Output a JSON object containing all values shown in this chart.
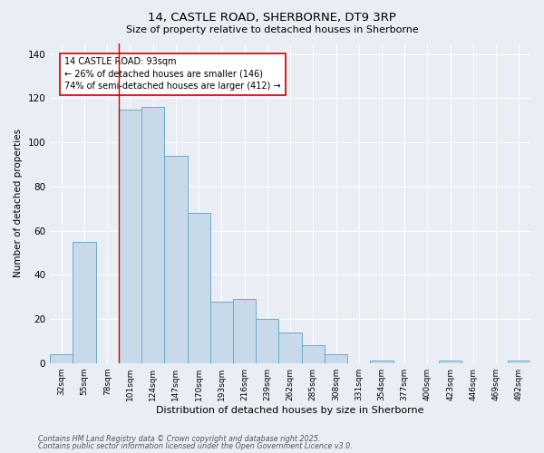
{
  "title_line1": "14, CASTLE ROAD, SHERBORNE, DT9 3RP",
  "title_line2": "Size of property relative to detached houses in Sherborne",
  "xlabel": "Distribution of detached houses by size in Sherborne",
  "ylabel": "Number of detached properties",
  "categories": [
    "32sqm",
    "55sqm",
    "78sqm",
    "101sqm",
    "124sqm",
    "147sqm",
    "170sqm",
    "193sqm",
    "216sqm",
    "239sqm",
    "262sqm",
    "285sqm",
    "308sqm",
    "331sqm",
    "354sqm",
    "377sqm",
    "400sqm",
    "423sqm",
    "446sqm",
    "469sqm",
    "492sqm"
  ],
  "values": [
    4,
    55,
    0,
    115,
    116,
    94,
    68,
    28,
    29,
    20,
    14,
    8,
    4,
    0,
    1,
    0,
    0,
    1,
    0,
    0,
    1
  ],
  "bar_color": "#c8daea",
  "bar_edge_color": "#6aaac8",
  "red_line_x": 2.5,
  "annotation_text": "14 CASTLE ROAD: 93sqm\n← 26% of detached houses are smaller (146)\n74% of semi-detached houses are larger (412) →",
  "annotation_box_color": "#ffffff",
  "annotation_box_edge": "#cc0000",
  "ylim": [
    0,
    145
  ],
  "yticks": [
    0,
    20,
    40,
    60,
    80,
    100,
    120,
    140
  ],
  "background_color": "#e8eef4",
  "grid_color": "#ffffff",
  "footer_line1": "Contains HM Land Registry data © Crown copyright and database right 2025.",
  "footer_line2": "Contains public sector information licensed under the Open Government Licence v3.0."
}
